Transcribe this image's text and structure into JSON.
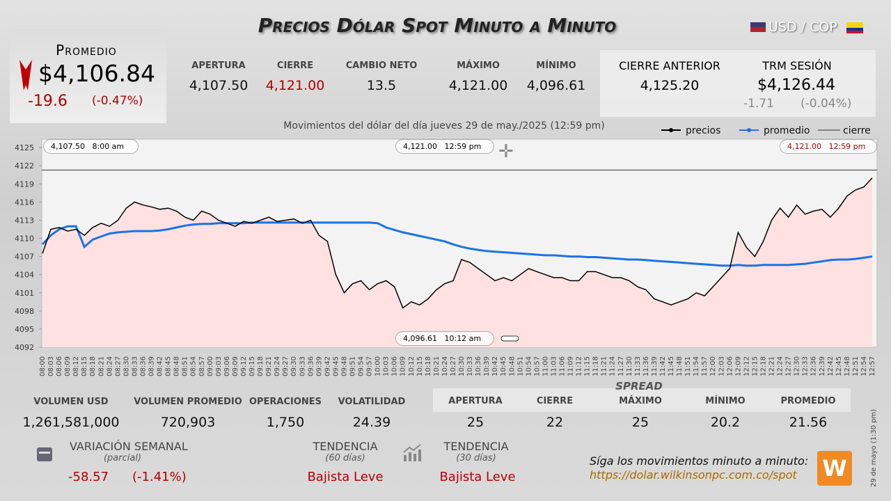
{
  "header": {
    "title": "Precios Dólar Spot Minuto a Minuto",
    "pair": "USD / COP",
    "promedio": {
      "label": "Promedio",
      "value": "$4,106.84",
      "change": "-19.6",
      "change_pct": "(-0.47%)"
    },
    "stats": [
      {
        "label": "APERTURA",
        "value": "4,107.50"
      },
      {
        "label": "CIERRE",
        "value": "4,121.00"
      },
      {
        "label": "CAMBIO NETO",
        "value": "13.5"
      },
      {
        "label": "MÁXIMO",
        "value": "4,121.00"
      },
      {
        "label": "MÍNIMO",
        "value": "4,096.61"
      }
    ],
    "cierre_anterior": {
      "label": "CIERRE ANTERIOR",
      "value": "4,125.20"
    },
    "trm": {
      "label": "TRM SESIÓN",
      "value": "$4,126.44",
      "change": "-1.71",
      "change_pct": "(-0.04%)"
    }
  },
  "chart_data": {
    "type": "line",
    "subtitle": "Movimientos del dólar del día jueves 29 de may./2025 (12:59 pm)",
    "categories": [
      "08:00",
      "08:03",
      "08:06",
      "08:09",
      "08:12",
      "08:15",
      "08:18",
      "08:21",
      "08:24",
      "08:27",
      "08:30",
      "08:33",
      "08:36",
      "08:39",
      "08:42",
      "08:45",
      "08:48",
      "08:51",
      "08:54",
      "08:57",
      "09:00",
      "09:03",
      "09:06",
      "09:09",
      "09:12",
      "09:15",
      "09:18",
      "09:21",
      "09:24",
      "09:27",
      "09:30",
      "09:33",
      "09:36",
      "09:39",
      "09:42",
      "09:45",
      "09:48",
      "09:51",
      "09:54",
      "09:57",
      "10:00",
      "10:03",
      "10:06",
      "10:09",
      "10:12",
      "10:15",
      "10:18",
      "10:21",
      "10:24",
      "10:27",
      "10:30",
      "10:33",
      "10:36",
      "10:39",
      "10:42",
      "10:45",
      "10:48",
      "10:51",
      "10:54",
      "10:57",
      "11:00",
      "11:03",
      "11:06",
      "11:09",
      "11:12",
      "11:15",
      "11:18",
      "11:21",
      "11:24",
      "11:27",
      "11:30",
      "11:33",
      "11:36",
      "11:39",
      "11:42",
      "11:45",
      "11:48",
      "11:51",
      "11:54",
      "11:57",
      "12:00",
      "12:03",
      "12:06",
      "12:09",
      "12:12",
      "12:15",
      "12:18",
      "12:21",
      "12:24",
      "12:27",
      "12:30",
      "12:33",
      "12:36",
      "12:39",
      "12:42",
      "12:45",
      "12:48",
      "12:51",
      "12:54",
      "12:57"
    ],
    "series": [
      {
        "name": "precios",
        "color": "#000000",
        "values": [
          4107.5,
          4111.5,
          4111.8,
          4111.2,
          4111.5,
          4110.5,
          4111.8,
          4112.5,
          4112,
          4113,
          4115,
          4116,
          4115.5,
          4115.2,
          4114.8,
          4115,
          4114.5,
          4113.5,
          4113,
          4114.5,
          4114,
          4113,
          4112.5,
          4112,
          4112.8,
          4112.5,
          4113,
          4113.5,
          4112.8,
          4113,
          4113.2,
          4112.5,
          4113,
          4110.5,
          4109.5,
          4104,
          4101,
          4102.5,
          4103,
          4101.5,
          4102.5,
          4103,
          4102,
          4098.5,
          4099.5,
          4099,
          4100,
          4101.5,
          4102.5,
          4103,
          4106.5,
          4106,
          4105,
          4104,
          4103,
          4103.5,
          4103,
          4104,
          4105,
          4104.5,
          4104,
          4103.5,
          4103.5,
          4103,
          4103,
          4104.5,
          4104.5,
          4104,
          4103.5,
          4103.5,
          4103,
          4102,
          4101.5,
          4100,
          4099.5,
          4099,
          4099.5,
          4100,
          4101,
          4100.5,
          4102,
          4103.5,
          4105,
          4111,
          4108.5,
          4107,
          4109.5,
          4113,
          4115,
          4113.5,
          4115.5,
          4114,
          4114.5,
          4114.8,
          4113.5,
          4115,
          4117,
          4118,
          4118.5,
          4120
        ]
      },
      {
        "name": "promedio",
        "color": "#1a73e8",
        "values": [
          4109,
          4110.5,
          4111.5,
          4112,
          4112,
          4108.6,
          4109.8,
          4110.3,
          4110.8,
          4111,
          4111.1,
          4111.2,
          4111.2,
          4111.2,
          4111.3,
          4111.5,
          4111.8,
          4112.1,
          4112.3,
          4112.4,
          4112.4,
          4112.5,
          4112.5,
          4112.5,
          4112.5,
          4112.6,
          4112.6,
          4112.6,
          4112.6,
          4112.6,
          4112.6,
          4112.6,
          4112.6,
          4112.6,
          4112.6,
          4112.6,
          4112.6,
          4112.6,
          4112.6,
          4112.6,
          4112.5,
          4111.8,
          4111.4,
          4111,
          4110.7,
          4110.4,
          4110.1,
          4109.8,
          4109.5,
          4109,
          4108.6,
          4108.3,
          4108.1,
          4107.9,
          4107.8,
          4107.7,
          4107.6,
          4107.5,
          4107.4,
          4107.3,
          4107.2,
          4107.2,
          4107.1,
          4107,
          4107,
          4106.9,
          4106.9,
          4106.8,
          4106.7,
          4106.6,
          4106.5,
          4106.5,
          4106.4,
          4106.3,
          4106.2,
          4106.1,
          4106,
          4105.9,
          4105.8,
          4105.7,
          4105.6,
          4105.5,
          4105.5,
          4105.6,
          4105.5,
          4105.5,
          4105.6,
          4105.6,
          4105.6,
          4105.6,
          4105.7,
          4105.8,
          4106,
          4106.2,
          4106.4,
          4106.5,
          4106.5,
          4106.6,
          4106.8,
          4107
        ]
      }
    ],
    "reference_line": {
      "name": "cierre",
      "value": 4121.3,
      "color": "#333333"
    },
    "ylim": [
      4092,
      4126.4
    ],
    "yticks": [
      4092,
      4095,
      4098,
      4101,
      4104,
      4107,
      4110,
      4113,
      4116,
      4119,
      4122,
      4125
    ],
    "area_color": "#ffe1e1",
    "annotations": [
      {
        "value": "4,107.50",
        "time": "8:00 am"
      },
      {
        "value": "4,121.00",
        "time": "12:59 pm"
      },
      {
        "value": "4,121.00",
        "time": "12:59 pm"
      },
      {
        "value": "4,096.61",
        "time": "10:12 am"
      }
    ]
  },
  "bottom": {
    "stats": [
      {
        "label": "VOLUMEN USD",
        "value": "1,261,581,000"
      },
      {
        "label": "VOLUMEN PROMEDIO",
        "value": "720,903"
      },
      {
        "label": "OPERACIONES",
        "value": "1,750"
      },
      {
        "label": "VOLATILIDAD",
        "value": "24.39"
      }
    ],
    "spread": {
      "title": "SPREAD",
      "items": [
        {
          "label": "APERTURA",
          "value": "25"
        },
        {
          "label": "CIERRE",
          "value": "22"
        },
        {
          "label": "MÁXIMO",
          "value": "25"
        },
        {
          "label": "MÍNIMO",
          "value": "20.2"
        },
        {
          "label": "PROMEDIO",
          "value": "21.56"
        }
      ]
    },
    "variacion": {
      "label": "VARIACIÓN SEMANAL",
      "sub": "(parcial)",
      "value": "-58.57",
      "pct": "(-1.41%)"
    },
    "tendencia": [
      {
        "label": "TENDENCIA",
        "sub": "(60 días)",
        "value": "Bajista Leve"
      },
      {
        "label": "TENDENCIA",
        "sub": "(30 días)",
        "value": "Bajista Leve"
      }
    ],
    "follow": "Síga los movimientos minuto a minuto:",
    "url": "https://dolar.wilkinsonpc.com.co/spot",
    "stamp": "29 de mayo (1:30 pm)"
  }
}
